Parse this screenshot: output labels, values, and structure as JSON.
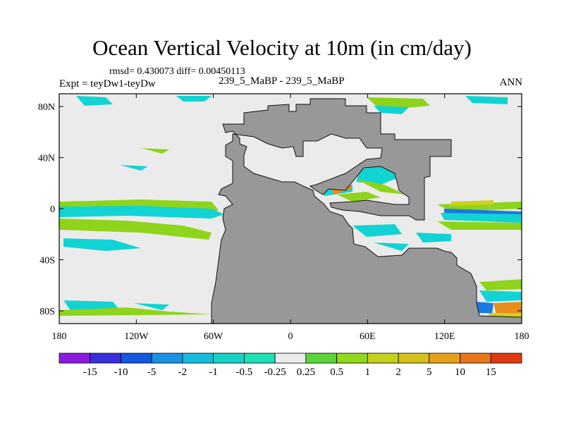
{
  "title": "Ocean Vertical Velocity at 10m (in cm/day)",
  "stats": "rmsd= 0.430073 diff= 0.00450113",
  "expt_label": "Expt = teyDw1-teyDw",
  "case_label": "239_5_MaBP - 239_5_MaBP",
  "season_label": "ANN",
  "colors": {
    "land": "#989898",
    "ocean_neutral": "#ebebeb",
    "cyan": "#12d3d3",
    "green": "#8ed41a",
    "yellow": "#cfd11d",
    "orange": "#e88d1c",
    "blue": "#1a79e3"
  },
  "map": {
    "lon_range": [
      -180,
      180
    ],
    "lat_range": [
      -90,
      90
    ],
    "lat_ticks": [
      "80N",
      "40N",
      "0",
      "40S",
      "80S"
    ],
    "lon_ticks": [
      "180",
      "120W",
      "60W",
      "0",
      "60E",
      "120E",
      "180"
    ]
  },
  "colorbar": {
    "labels": [
      "-15",
      "-10",
      "-5",
      "-2",
      "-1",
      "-0.5",
      "-0.25",
      "0.25",
      "0.5",
      "1",
      "2",
      "5",
      "10",
      "15"
    ],
    "colors": [
      "#8a1de0",
      "#3b2fdc",
      "#1457e0",
      "#1a92e3",
      "#12bde0",
      "#18d0c6",
      "#1de0b4",
      "#ebebeb",
      "#5bd63c",
      "#93d61a",
      "#c3d11a",
      "#d6c01a",
      "#e8a01a",
      "#e8751a",
      "#e03a12"
    ]
  }
}
